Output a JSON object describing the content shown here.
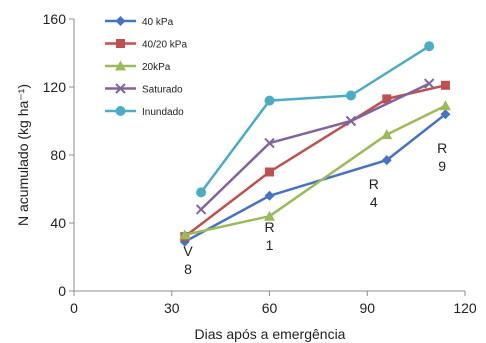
{
  "chart_data": {
    "type": "line",
    "xlabel": "Dias após a emergência",
    "ylabel": "N acumulado (kg ha⁻¹)",
    "xlim": [
      0,
      120
    ],
    "ylim": [
      0,
      160
    ],
    "x_ticks": [
      0,
      30,
      60,
      90,
      120
    ],
    "y_ticks": [
      0,
      40,
      80,
      120,
      160
    ],
    "x_tick_labels": [
      "0",
      "30",
      "60",
      "90",
      "120"
    ],
    "y_tick_labels": [
      "0",
      "40",
      "80",
      "120",
      "160"
    ],
    "grid": false,
    "legend_position": "top-left",
    "series": [
      {
        "name": "40 kPa",
        "color": "#4472C4",
        "marker": "diamond",
        "points": [
          [
            34,
            29
          ],
          [
            60,
            56
          ],
          [
            96,
            77
          ],
          [
            114,
            104
          ]
        ]
      },
      {
        "name": "40/20 kPa",
        "color": "#C0504D",
        "marker": "square",
        "points": [
          [
            34,
            32
          ],
          [
            60,
            70
          ],
          [
            96,
            113
          ],
          [
            114,
            121
          ]
        ]
      },
      {
        "name": "20kPa",
        "color": "#9BBB59",
        "marker": "triangle",
        "points": [
          [
            34,
            33
          ],
          [
            60,
            44
          ],
          [
            96,
            92
          ],
          [
            114,
            109
          ]
        ]
      },
      {
        "name": "Saturado",
        "color": "#8064A2",
        "marker": "x",
        "points": [
          [
            39,
            48
          ],
          [
            60,
            87
          ],
          [
            85,
            100
          ],
          [
            109,
            122
          ]
        ]
      },
      {
        "name": "Inundado",
        "color": "#4BACC6",
        "marker": "circle",
        "points": [
          [
            39,
            58
          ],
          [
            60,
            112
          ],
          [
            85,
            115
          ],
          [
            109,
            144
          ]
        ]
      }
    ],
    "annotations": [
      {
        "lines": [
          "V",
          "8"
        ],
        "x": 35
      },
      {
        "lines": [
          "R",
          "1"
        ],
        "x": 60
      },
      {
        "lines": [
          "R",
          "4"
        ],
        "x": 92
      },
      {
        "lines": [
          "R",
          "9"
        ],
        "x": 113
      }
    ]
  }
}
